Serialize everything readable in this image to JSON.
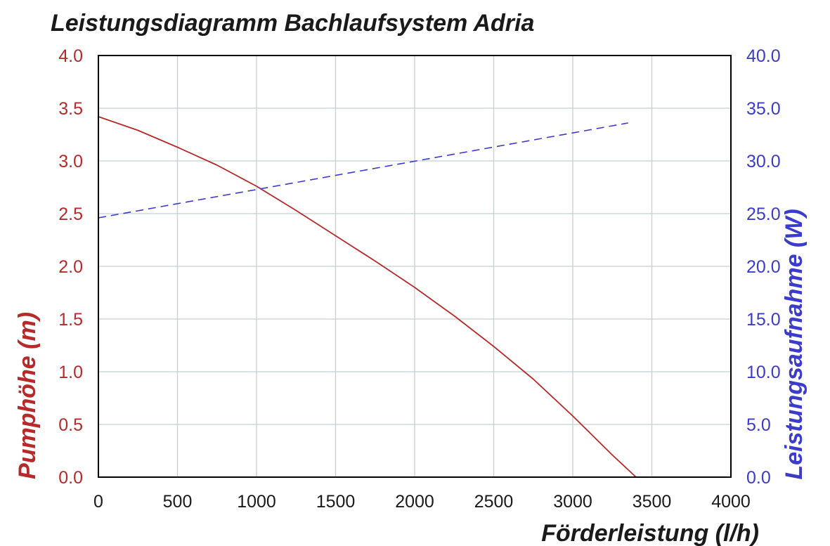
{
  "colors": {
    "grid": "#c5d0d3",
    "frame": "#000000",
    "head": "#b82a2a",
    "power": "#3b3bcc",
    "text": "#1a1a1a"
  },
  "chart_data": {
    "type": "line",
    "title": "Leistungsdiagramm Bachlaufsystem Adria",
    "xlabel": "Förderleistung (l/h)",
    "ylabel_left": "Pumphöhe (m)",
    "ylabel_right": "Leistungsaufnahme (W)",
    "xlim": [
      0,
      4000
    ],
    "ylim_left": [
      0,
      4.0
    ],
    "ylim_right": [
      0,
      40.0
    ],
    "grid": true,
    "x_ticks": [
      "0",
      "500",
      "1000",
      "1500",
      "2000",
      "2500",
      "3000",
      "3500",
      "4000"
    ],
    "y_left_ticks": [
      "0.0",
      "0.5",
      "1.0",
      "1.5",
      "2.0",
      "2.5",
      "3.0",
      "3.5",
      "4.0"
    ],
    "y_right_ticks": [
      "0.0",
      "5.0",
      "10.0",
      "15.0",
      "20.0",
      "25.0",
      "30.0",
      "35.0",
      "40.0"
    ],
    "series": [
      {
        "axis": "left",
        "style": "solid",
        "x": [
          0,
          250,
          500,
          750,
          1000,
          1250,
          1500,
          1750,
          2000,
          2250,
          2500,
          2750,
          3000,
          3250,
          3400
        ],
        "y": [
          3.42,
          3.29,
          3.13,
          2.96,
          2.76,
          2.53,
          2.29,
          2.05,
          1.8,
          1.53,
          1.24,
          0.93,
          0.58,
          0.21,
          0.0
        ]
      },
      {
        "axis": "right",
        "style": "dashed",
        "x": [
          0,
          3350
        ],
        "y": [
          24.6,
          33.6
        ]
      }
    ]
  }
}
